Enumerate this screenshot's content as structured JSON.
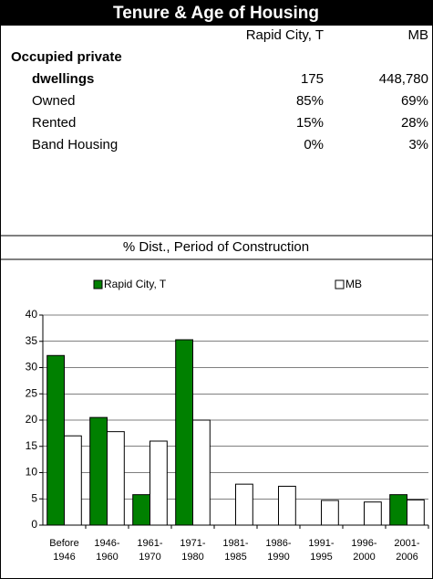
{
  "header": {
    "title": "Tenure & Age of Housing"
  },
  "table": {
    "columns": [
      "Rapid City, T",
      "MB"
    ],
    "rows": [
      [
        "Occupied private"
      ],
      [
        "dwellings",
        "175",
        "448,780"
      ],
      [
        "Owned",
        "85%",
        "69%"
      ],
      [
        "Rented",
        "15%",
        "28%"
      ],
      [
        "Band Housing",
        "0%",
        "3%"
      ]
    ]
  },
  "section_title": "% Dist., Period of Construction",
  "chart_data": {
    "type": "bar",
    "categories": [
      [
        "Before",
        "1946"
      ],
      [
        "1946-",
        "1960"
      ],
      [
        "1961-",
        "1970"
      ],
      [
        "1971-",
        "1980"
      ],
      [
        "1981-",
        "1985"
      ],
      [
        "1986-",
        "1990"
      ],
      [
        "1991-",
        "1995"
      ],
      [
        "1996-",
        "2000"
      ],
      [
        "2001-",
        "2006"
      ]
    ],
    "series": [
      {
        "name": "Rapid City, T",
        "color": "#008000",
        "values": [
          32.3,
          20.5,
          5.8,
          35.3,
          0,
          0,
          0,
          0,
          5.8
        ]
      },
      {
        "name": "MB",
        "color": "#ffffff",
        "values": [
          17,
          17.8,
          16,
          20,
          7.8,
          7.4,
          4.7,
          4.4,
          4.8
        ]
      }
    ],
    "ylim": [
      0,
      40
    ],
    "yticks": [
      0,
      5,
      10,
      15,
      20,
      25,
      30,
      35,
      40
    ],
    "grid": true
  }
}
